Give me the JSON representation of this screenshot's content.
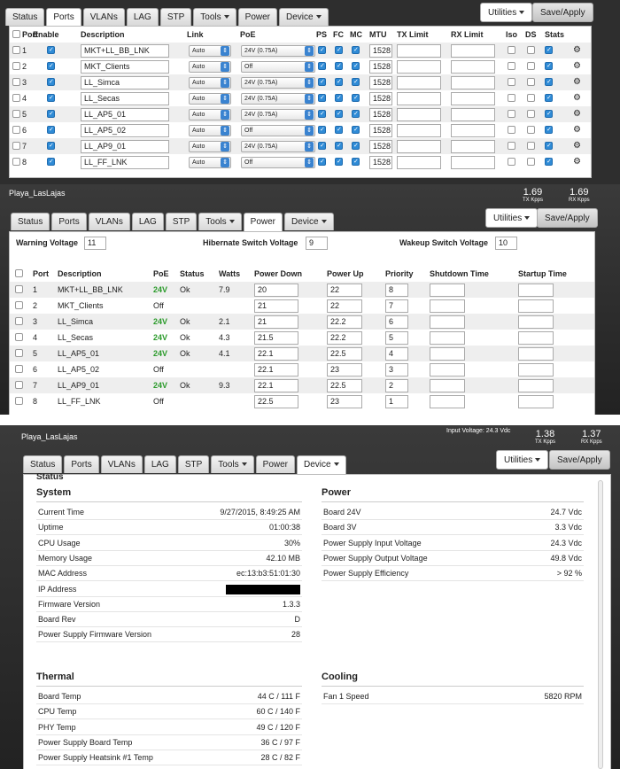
{
  "tabs": [
    "Status",
    "Ports",
    "VLANs",
    "LAG",
    "STP",
    "Tools",
    "Power",
    "Device"
  ],
  "buttons": {
    "utilities": "Utilities",
    "save": "Save/Apply"
  },
  "site_name": "Playa_LasLajas",
  "kpi": {
    "input_voltage": "Input Voltage: 24.3 Vdc",
    "tx_value": "1.38",
    "tx_label": "TX Kpps",
    "rx_value": "1.37",
    "rx_label": "RX Kpps",
    "tx_value_2": "1.69",
    "rx_value_2": "1.69"
  },
  "ports": {
    "headers": [
      "Port",
      "Enable",
      "Description",
      "Link",
      "PoE",
      "PS",
      "FC",
      "MC",
      "MTU",
      "TX Limit",
      "RX Limit",
      "Iso",
      "DS",
      "Stats"
    ],
    "rows": [
      {
        "port": "1",
        "desc": "MKT+LL_BB_LNK",
        "link": "Auto",
        "poe": "24V (0.75A)",
        "mtu": "1528"
      },
      {
        "port": "2",
        "desc": "MKT_Clients",
        "link": "Auto",
        "poe": "Off",
        "mtu": "1528"
      },
      {
        "port": "3",
        "desc": "LL_Simca",
        "link": "Auto",
        "poe": "24V (0.75A)",
        "mtu": "1528"
      },
      {
        "port": "4",
        "desc": "LL_Secas",
        "link": "Auto",
        "poe": "24V (0.75A)",
        "mtu": "1528"
      },
      {
        "port": "5",
        "desc": "LL_AP5_01",
        "link": "Auto",
        "poe": "24V (0.75A)",
        "mtu": "1528"
      },
      {
        "port": "6",
        "desc": "LL_AP5_02",
        "link": "Auto",
        "poe": "Off",
        "mtu": "1528"
      },
      {
        "port": "7",
        "desc": "LL_AP9_01",
        "link": "Auto",
        "poe": "24V (0.75A)",
        "mtu": "1528"
      },
      {
        "port": "8",
        "desc": "LL_FF_LNK",
        "link": "Auto",
        "poe": "Off",
        "mtu": "1528"
      }
    ]
  },
  "power": {
    "warning_label": "Warning Voltage",
    "warning_value": "11",
    "hibernate_label": "Hibernate Switch Voltage",
    "hibernate_value": "9",
    "wakeup_label": "Wakeup Switch Voltage",
    "wakeup_value": "10",
    "headers": [
      "Port",
      "Description",
      "PoE",
      "Status",
      "Watts",
      "Power Down",
      "Power Up",
      "Priority",
      "Shutdown Time",
      "Startup Time"
    ],
    "rows": [
      {
        "port": "1",
        "desc": "MKT+LL_BB_LNK",
        "poe": "24V",
        "status": "Ok",
        "watts": "7.9",
        "down": "20",
        "up": "22",
        "prio": "8"
      },
      {
        "port": "2",
        "desc": "MKT_Clients",
        "poe": "Off",
        "status": "",
        "watts": "",
        "down": "21",
        "up": "22",
        "prio": "7"
      },
      {
        "port": "3",
        "desc": "LL_Simca",
        "poe": "24V",
        "status": "Ok",
        "watts": "2.1",
        "down": "21",
        "up": "22.2",
        "prio": "6"
      },
      {
        "port": "4",
        "desc": "LL_Secas",
        "poe": "24V",
        "status": "Ok",
        "watts": "4.3",
        "down": "21.5",
        "up": "22.2",
        "prio": "5"
      },
      {
        "port": "5",
        "desc": "LL_AP5_01",
        "poe": "24V",
        "status": "Ok",
        "watts": "4.1",
        "down": "22.1",
        "up": "22.5",
        "prio": "4"
      },
      {
        "port": "6",
        "desc": "LL_AP5_02",
        "poe": "Off",
        "status": "",
        "watts": "",
        "down": "22.1",
        "up": "23",
        "prio": "3"
      },
      {
        "port": "7",
        "desc": "LL_AP9_01",
        "poe": "24V",
        "status": "Ok",
        "watts": "9.3",
        "down": "22.1",
        "up": "22.5",
        "prio": "2"
      },
      {
        "port": "8",
        "desc": "LL_FF_LNK",
        "poe": "Off",
        "status": "",
        "watts": "",
        "down": "22.5",
        "up": "23",
        "prio": "1"
      }
    ]
  },
  "device": {
    "status_title": "Status",
    "system_title": "System",
    "system": [
      {
        "k": "Current Time",
        "v": "9/27/2015, 8:49:25 AM"
      },
      {
        "k": "Uptime",
        "v": "01:00:38"
      },
      {
        "k": "CPU Usage",
        "v": "30%"
      },
      {
        "k": "Memory Usage",
        "v": "42.10 MB"
      },
      {
        "k": "MAC Address",
        "v": "ec:13:b3:51:01:30"
      },
      {
        "k": "IP Address",
        "v": "",
        "redacted": true
      },
      {
        "k": "Firmware Version",
        "v": "1.3.3"
      },
      {
        "k": "Board Rev",
        "v": "D"
      },
      {
        "k": "Power Supply Firmware Version",
        "v": "28"
      }
    ],
    "power_title": "Power",
    "power": [
      {
        "k": "Board 24V",
        "v": "24.7 Vdc"
      },
      {
        "k": "Board 3V",
        "v": "3.3 Vdc"
      },
      {
        "k": "Power Supply Input Voltage",
        "v": "24.3 Vdc"
      },
      {
        "k": "Power Supply Output Voltage",
        "v": "49.8 Vdc"
      },
      {
        "k": "Power Supply Efficiency",
        "v": "> 92 %"
      }
    ],
    "thermal_title": "Thermal",
    "thermal": [
      {
        "k": "Board Temp",
        "v": "44 C / 111 F"
      },
      {
        "k": "CPU Temp",
        "v": "60 C / 140 F"
      },
      {
        "k": "PHY Temp",
        "v": "49 C / 120 F"
      },
      {
        "k": "Power Supply Board Temp",
        "v": "36 C / 97 F"
      },
      {
        "k": "Power Supply Heatsink #1 Temp",
        "v": "28 C / 82 F"
      }
    ],
    "cooling_title": "Cooling",
    "cooling": [
      {
        "k": "Fan 1 Speed",
        "v": "5820 RPM"
      }
    ]
  }
}
